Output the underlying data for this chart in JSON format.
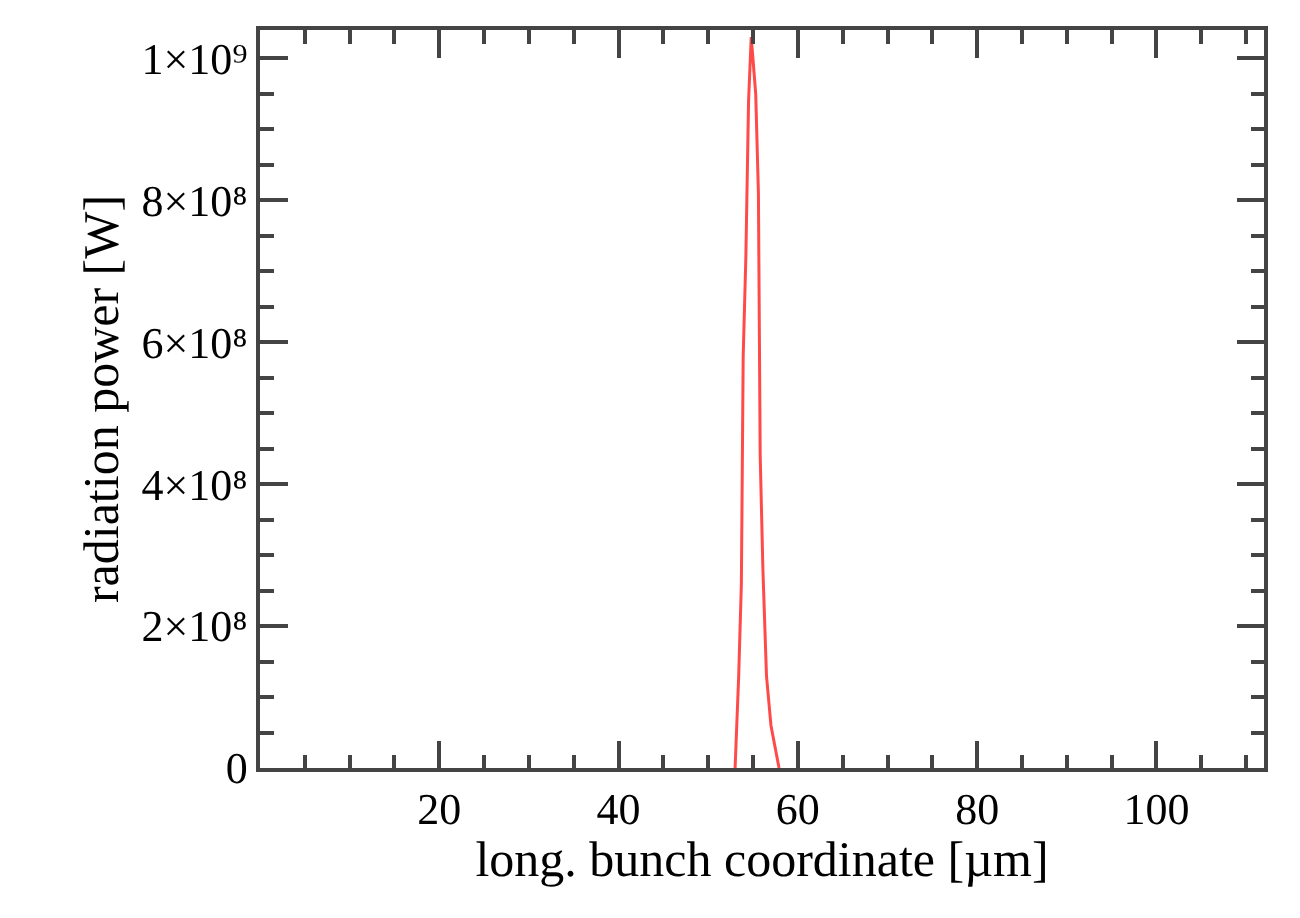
{
  "chart_data": {
    "type": "line",
    "xlabel": "long. bunch coordinate [µm]",
    "ylabel": "radiation power [W]",
    "x": [
      53.0,
      53.4,
      53.7,
      53.9,
      54.2,
      54.5,
      54.8,
      55.3,
      55.6,
      55.8,
      56.1,
      56.5,
      57.0,
      57.9
    ],
    "series": [
      {
        "color": "#ff4a4a",
        "values": [
          0,
          130000000.0,
          260000000.0,
          580000000.0,
          720000000.0,
          940000000.0,
          1030000000.0,
          950000000.0,
          810000000.0,
          440000000.0,
          280000000.0,
          130000000.0,
          60000000.0,
          0
        ]
      }
    ],
    "xlim": [
      0,
      112
    ],
    "xticks": [
      20,
      40,
      60,
      80,
      100
    ],
    "ylim": [
      0,
      1040000000.0
    ],
    "yticks": [
      0,
      {
        "value": 200000000.0,
        "label": "2×10⁸"
      },
      {
        "value": 400000000.0,
        "label": "4×10⁸"
      },
      {
        "value": 600000000.0,
        "label": "6×10⁸"
      },
      {
        "value": 800000000.0,
        "label": "8×10⁸"
      },
      {
        "value": 1000000000.0,
        "label": "1×10⁹"
      }
    ],
    "grid": false,
    "legend": false,
    "marker": "none",
    "line_style": "solid"
  }
}
